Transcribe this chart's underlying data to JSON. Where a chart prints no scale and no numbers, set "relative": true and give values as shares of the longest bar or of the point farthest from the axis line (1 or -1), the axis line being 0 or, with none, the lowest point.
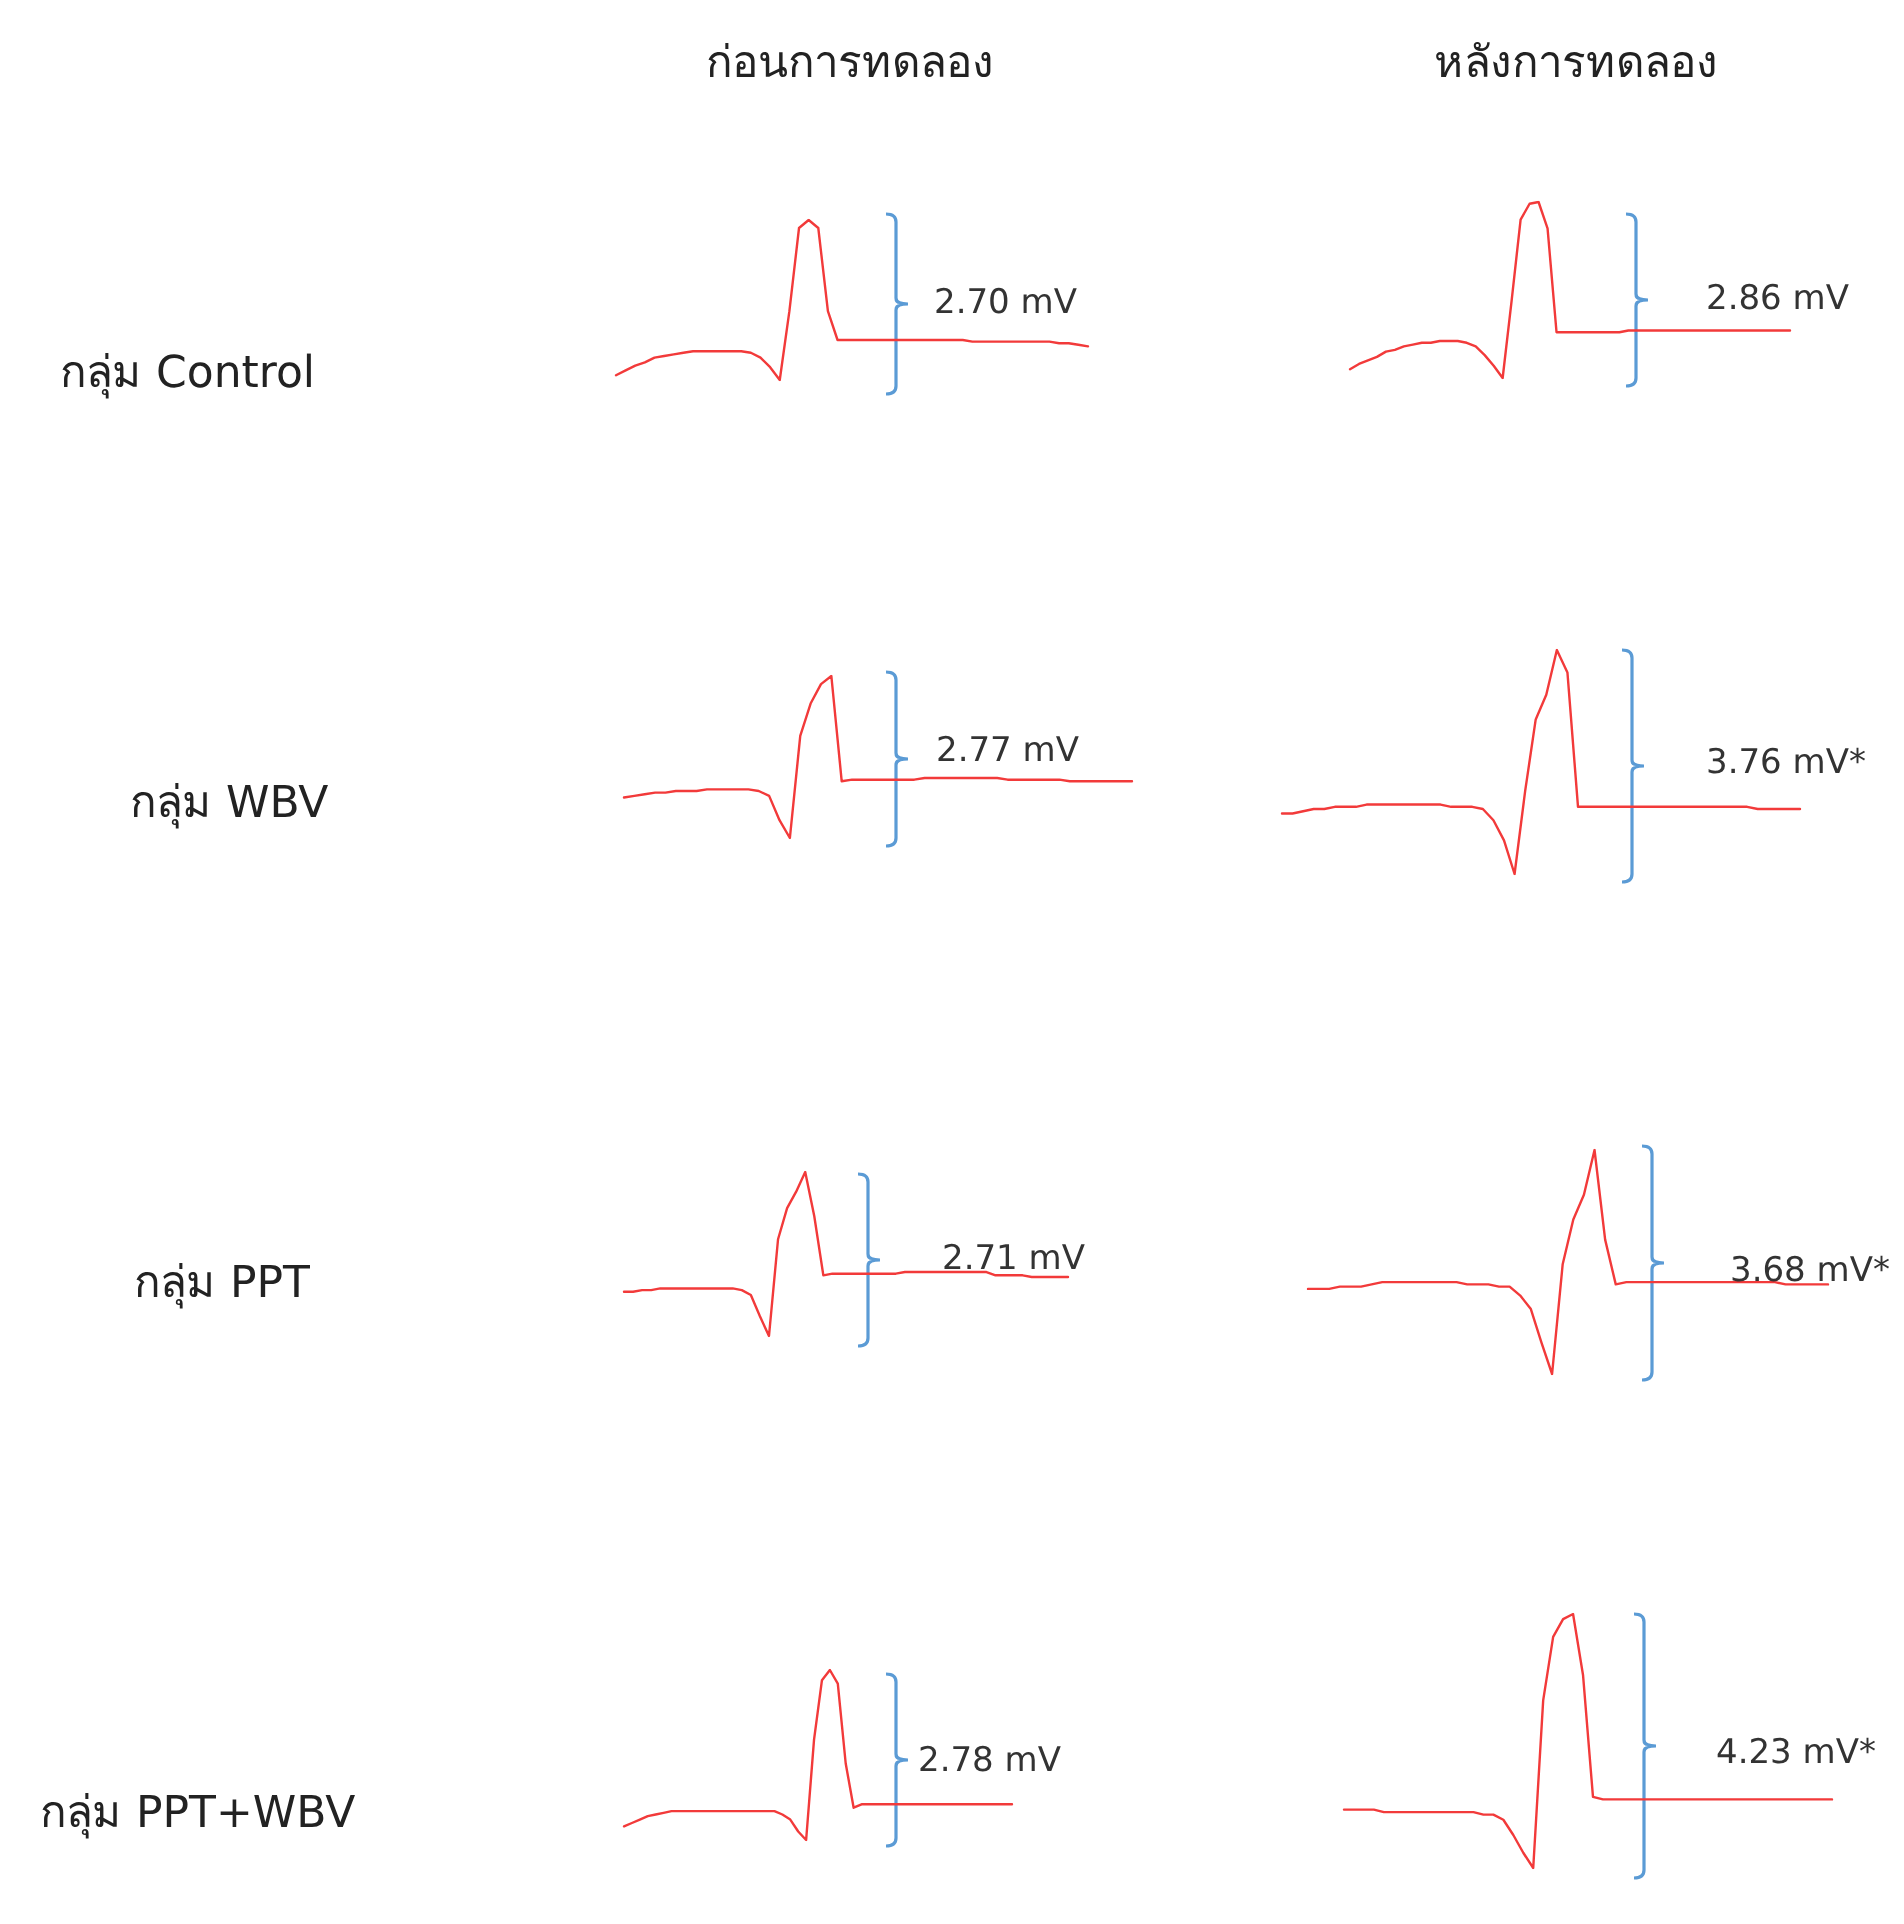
{
  "chart_data": [
    {
      "type": "line",
      "title": "ก่อนการทดลอง",
      "ylabel": "กลุ่ม Control",
      "relative": true,
      "color": "#f23a3a",
      "annotations": [
        "2.70 mV"
      ],
      "categories": [
        null,
        null,
        null,
        null,
        null,
        null,
        null,
        null,
        null,
        null,
        null,
        null,
        null,
        null,
        null,
        null,
        null,
        null,
        null,
        null,
        null,
        null,
        null,
        null,
        null,
        null,
        null,
        null,
        null,
        null,
        null,
        null,
        null,
        null,
        null,
        null,
        null,
        null,
        null,
        null,
        null,
        null,
        null,
        null,
        null,
        null,
        null,
        null,
        null,
        null
      ],
      "values": [
        0.03,
        0.06,
        0.09,
        0.11,
        0.14,
        0.15,
        0.16,
        0.17,
        0.18,
        0.18,
        0.18,
        0.18,
        0.18,
        0.18,
        0.17,
        0.14,
        0.08,
        0,
        0.43,
        0.95,
        1,
        0.95,
        0.43,
        0.25,
        0.25,
        0.25,
        0.25,
        0.25,
        0.25,
        0.25,
        0.25,
        0.25,
        0.25,
        0.25,
        0.25,
        0.25,
        0.25,
        0.24,
        0.24,
        0.24,
        0.24,
        0.24,
        0.24,
        0.24,
        0.24,
        0.24,
        0.23,
        0.23,
        0.22,
        0.21
      ]
    },
    {
      "type": "line",
      "title": "หลังการทดลอง",
      "relative": true,
      "color": "#f23a3a",
      "annotations": [
        "2.86 mV"
      ],
      "categories": [
        null,
        null,
        null,
        null,
        null,
        null,
        null,
        null,
        null,
        null,
        null,
        null,
        null,
        null,
        null,
        null,
        null,
        null,
        null,
        null,
        null,
        null,
        null,
        null,
        null,
        null,
        null,
        null,
        null,
        null,
        null,
        null,
        null,
        null,
        null,
        null,
        null,
        null,
        null,
        null,
        null,
        null,
        null,
        null,
        null,
        null,
        null,
        null,
        null,
        null
      ],
      "values": [
        0.05,
        0.08,
        0.1,
        0.12,
        0.15,
        0.16,
        0.18,
        0.19,
        0.2,
        0.2,
        0.21,
        0.21,
        0.21,
        0.2,
        0.18,
        0.13,
        0.07,
        0,
        0.44,
        0.9,
        0.99,
        1,
        0.85,
        0.26,
        0.26,
        0.26,
        0.26,
        0.26,
        0.26,
        0.26,
        0.26,
        0.27,
        0.27,
        0.27,
        0.27,
        0.27,
        0.27,
        0.27,
        0.27,
        0.27,
        0.27,
        0.27,
        0.27,
        0.27,
        0.27,
        0.27,
        0.27,
        0.27,
        0.27,
        0.27
      ]
    },
    {
      "type": "line",
      "ylabel": "กลุ่ม WBV",
      "relative": true,
      "color": "#f23a3a",
      "annotations": [
        "2.77 mV"
      ],
      "categories": [
        null,
        null,
        null,
        null,
        null,
        null,
        null,
        null,
        null,
        null,
        null,
        null,
        null,
        null,
        null,
        null,
        null,
        null,
        null,
        null,
        null,
        null,
        null,
        null,
        null,
        null,
        null,
        null,
        null,
        null,
        null,
        null,
        null,
        null,
        null,
        null,
        null,
        null,
        null,
        null,
        null,
        null,
        null,
        null,
        null,
        null,
        null,
        null,
        null,
        null
      ],
      "values": [
        0.25,
        0.26,
        0.27,
        0.28,
        0.28,
        0.29,
        0.29,
        0.29,
        0.3,
        0.3,
        0.3,
        0.3,
        0.3,
        0.29,
        0.26,
        0.11,
        0,
        0.63,
        0.83,
        0.95,
        1,
        0.35,
        0.36,
        0.36,
        0.36,
        0.36,
        0.36,
        0.36,
        0.36,
        0.37,
        0.37,
        0.37,
        0.37,
        0.37,
        0.37,
        0.37,
        0.37,
        0.36,
        0.36,
        0.36,
        0.36,
        0.36,
        0.36,
        0.35,
        0.35,
        0.35,
        0.35,
        0.35,
        0.35,
        0.35
      ]
    },
    {
      "type": "line",
      "relative": true,
      "color": "#f23a3a",
      "annotations": [
        "3.76 mV*"
      ],
      "categories": [
        null,
        null,
        null,
        null,
        null,
        null,
        null,
        null,
        null,
        null,
        null,
        null,
        null,
        null,
        null,
        null,
        null,
        null,
        null,
        null,
        null,
        null,
        null,
        null,
        null,
        null,
        null,
        null,
        null,
        null,
        null,
        null,
        null,
        null,
        null,
        null,
        null,
        null,
        null,
        null,
        null,
        null,
        null,
        null,
        null,
        null,
        null,
        null,
        null,
        null
      ],
      "values": [
        0.27,
        0.27,
        0.28,
        0.29,
        0.29,
        0.3,
        0.3,
        0.3,
        0.31,
        0.31,
        0.31,
        0.31,
        0.31,
        0.31,
        0.31,
        0.31,
        0.3,
        0.3,
        0.3,
        0.29,
        0.24,
        0.15,
        0,
        0.37,
        0.69,
        0.8,
        1,
        0.9,
        0.3,
        0.3,
        0.3,
        0.3,
        0.3,
        0.3,
        0.3,
        0.3,
        0.3,
        0.3,
        0.3,
        0.3,
        0.3,
        0.3,
        0.3,
        0.3,
        0.3,
        0.29,
        0.29,
        0.29,
        0.29,
        0.29
      ]
    },
    {
      "type": "line",
      "ylabel": "กลุ่ม PPT",
      "relative": true,
      "color": "#f23a3a",
      "annotations": [
        "2.71 mV"
      ],
      "categories": [
        null,
        null,
        null,
        null,
        null,
        null,
        null,
        null,
        null,
        null,
        null,
        null,
        null,
        null,
        null,
        null,
        null,
        null,
        null,
        null,
        null,
        null,
        null,
        null,
        null,
        null,
        null,
        null,
        null,
        null,
        null,
        null,
        null,
        null,
        null,
        null,
        null,
        null,
        null,
        null,
        null,
        null,
        null,
        null,
        null,
        null,
        null,
        null,
        null,
        null
      ],
      "values": [
        0.27,
        0.27,
        0.28,
        0.28,
        0.29,
        0.29,
        0.29,
        0.29,
        0.29,
        0.29,
        0.29,
        0.29,
        0.29,
        0.28,
        0.25,
        0.12,
        0,
        0.59,
        0.78,
        0.88,
        1,
        0.73,
        0.37,
        0.38,
        0.38,
        0.38,
        0.38,
        0.38,
        0.38,
        0.38,
        0.38,
        0.39,
        0.39,
        0.39,
        0.39,
        0.39,
        0.39,
        0.39,
        0.39,
        0.39,
        0.39,
        0.37,
        0.37,
        0.37,
        0.37,
        0.36,
        0.36,
        0.36,
        0.36,
        0.36
      ]
    },
    {
      "type": "line",
      "relative": true,
      "color": "#f23a3a",
      "annotations": [
        "3.68 mV*"
      ],
      "categories": [
        null,
        null,
        null,
        null,
        null,
        null,
        null,
        null,
        null,
        null,
        null,
        null,
        null,
        null,
        null,
        null,
        null,
        null,
        null,
        null,
        null,
        null,
        null,
        null,
        null,
        null,
        null,
        null,
        null,
        null,
        null,
        null,
        null,
        null,
        null,
        null,
        null,
        null,
        null,
        null,
        null,
        null,
        null,
        null,
        null,
        null,
        null,
        null,
        null,
        null
      ],
      "values": [
        0.38,
        0.38,
        0.38,
        0.39,
        0.39,
        0.39,
        0.4,
        0.41,
        0.41,
        0.41,
        0.41,
        0.41,
        0.41,
        0.41,
        0.41,
        0.4,
        0.4,
        0.4,
        0.39,
        0.39,
        0.35,
        0.29,
        0.14,
        0,
        0.49,
        0.69,
        0.8,
        1,
        0.6,
        0.4,
        0.41,
        0.41,
        0.41,
        0.41,
        0.41,
        0.41,
        0.41,
        0.41,
        0.41,
        0.41,
        0.41,
        0.41,
        0.41,
        0.41,
        0.41,
        0.4,
        0.4,
        0.4,
        0.4,
        0.4
      ]
    },
    {
      "type": "line",
      "ylabel": "กลุ่ม PPT+WBV",
      "relative": true,
      "color": "#f23a3a",
      "annotations": [
        "2.78 mV"
      ],
      "categories": [
        null,
        null,
        null,
        null,
        null,
        null,
        null,
        null,
        null,
        null,
        null,
        null,
        null,
        null,
        null,
        null,
        null,
        null,
        null,
        null,
        null,
        null,
        null,
        null,
        null,
        null,
        null,
        null,
        null,
        null,
        null,
        null,
        null,
        null,
        null,
        null,
        null,
        null,
        null,
        null,
        null,
        null,
        null,
        null,
        null,
        null,
        null,
        null,
        null,
        null
      ],
      "values": [
        0.08,
        0.1,
        0.12,
        0.14,
        0.15,
        0.16,
        0.17,
        0.17,
        0.17,
        0.17,
        0.17,
        0.17,
        0.17,
        0.17,
        0.17,
        0.17,
        0.17,
        0.17,
        0.17,
        0.17,
        0.15,
        0.12,
        0.05,
        0,
        0.59,
        0.94,
        1,
        0.92,
        0.45,
        0.19,
        0.21,
        0.21,
        0.21,
        0.21,
        0.21,
        0.21,
        0.21,
        0.21,
        0.21,
        0.21,
        0.21,
        0.21,
        0.21,
        0.21,
        0.21,
        0.21,
        0.21,
        0.21,
        0.21,
        0.21
      ]
    },
    {
      "type": "line",
      "relative": true,
      "color": "#f23a3a",
      "annotations": [
        "4.23 mV*"
      ],
      "categories": [
        null,
        null,
        null,
        null,
        null,
        null,
        null,
        null,
        null,
        null,
        null,
        null,
        null,
        null,
        null,
        null,
        null,
        null,
        null,
        null,
        null,
        null,
        null,
        null,
        null,
        null,
        null,
        null,
        null,
        null,
        null,
        null,
        null,
        null,
        null,
        null,
        null,
        null,
        null,
        null,
        null,
        null,
        null,
        null,
        null,
        null,
        null,
        null,
        null,
        null
      ],
      "values": [
        0.23,
        0.23,
        0.23,
        0.23,
        0.22,
        0.22,
        0.22,
        0.22,
        0.22,
        0.22,
        0.22,
        0.22,
        0.22,
        0.22,
        0.21,
        0.21,
        0.19,
        0.13,
        0.06,
        0,
        0.66,
        0.91,
        0.98,
        1,
        0.76,
        0.28,
        0.27,
        0.27,
        0.27,
        0.27,
        0.27,
        0.27,
        0.27,
        0.27,
        0.27,
        0.27,
        0.27,
        0.27,
        0.27,
        0.27,
        0.27,
        0.27,
        0.27,
        0.27,
        0.27,
        0.27,
        0.27,
        0.27,
        0.27,
        0.27
      ]
    }
  ]
}
